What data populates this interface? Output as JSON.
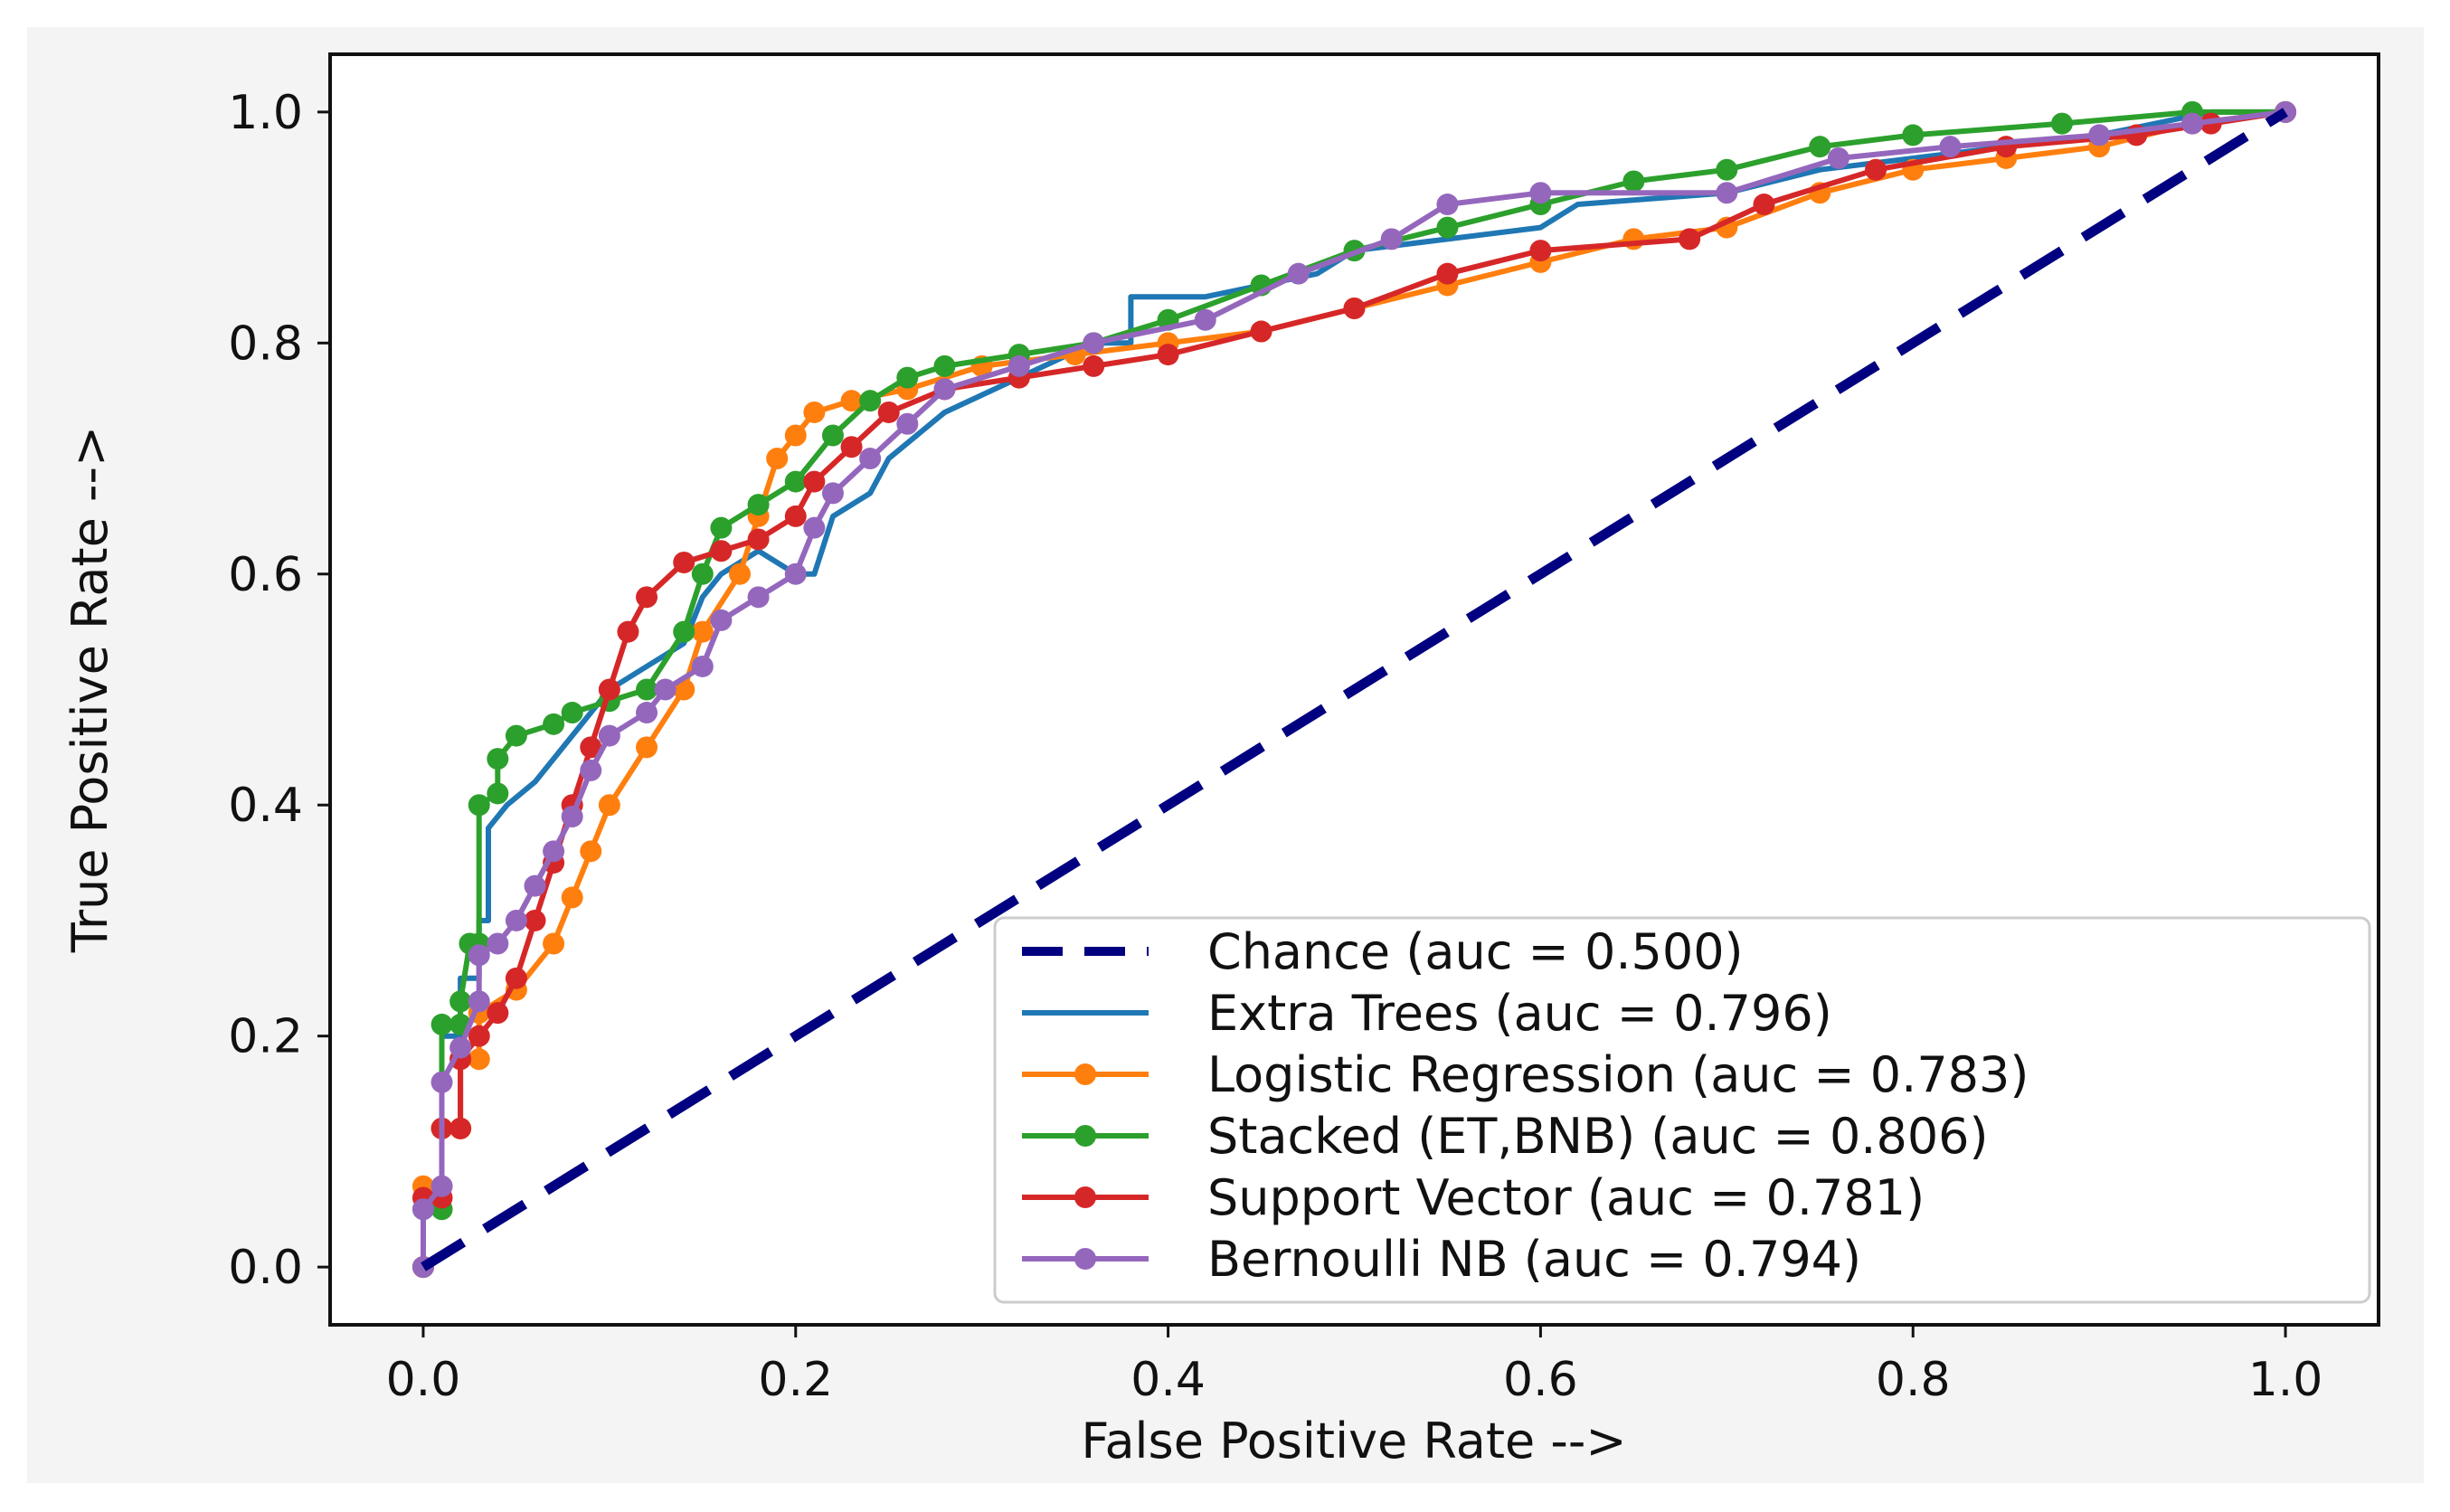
{
  "chart_data": {
    "type": "line",
    "title": "",
    "xlabel": "False Positive Rate -->",
    "ylabel": "True Positive Rate -->",
    "xlim": [
      -0.05,
      1.05
    ],
    "ylim": [
      -0.05,
      1.05
    ],
    "x_ticks": [
      "0.0",
      "0.2",
      "0.4",
      "0.6",
      "0.8",
      "1.0"
    ],
    "y_ticks": [
      "0.0",
      "0.2",
      "0.4",
      "0.6",
      "0.8",
      "1.0"
    ],
    "x_tick_values": [
      0,
      0.2,
      0.4,
      0.6,
      0.8,
      1.0
    ],
    "y_tick_values": [
      0,
      0.2,
      0.4,
      0.6,
      0.8,
      1.0
    ],
    "grid": false,
    "legend_position": "bottom-right",
    "series": [
      {
        "name": "Chance (auc = 0.500)",
        "color": "#000080",
        "style": "dashed",
        "markers": false,
        "points": [
          [
            0,
            0
          ],
          [
            1,
            1
          ]
        ]
      },
      {
        "name": "Extra Trees (auc = 0.796)",
        "color": "#1f77b4",
        "style": "solid",
        "markers": false,
        "points": [
          [
            0,
            0
          ],
          [
            0,
            0.05
          ],
          [
            0.01,
            0.05
          ],
          [
            0.01,
            0.2
          ],
          [
            0.02,
            0.2
          ],
          [
            0.02,
            0.25
          ],
          [
            0.03,
            0.25
          ],
          [
            0.03,
            0.3
          ],
          [
            0.035,
            0.3
          ],
          [
            0.035,
            0.38
          ],
          [
            0.045,
            0.4
          ],
          [
            0.06,
            0.42
          ],
          [
            0.08,
            0.46
          ],
          [
            0.1,
            0.5
          ],
          [
            0.12,
            0.52
          ],
          [
            0.14,
            0.54
          ],
          [
            0.15,
            0.58
          ],
          [
            0.16,
            0.6
          ],
          [
            0.18,
            0.62
          ],
          [
            0.2,
            0.6
          ],
          [
            0.21,
            0.6
          ],
          [
            0.22,
            0.65
          ],
          [
            0.24,
            0.67
          ],
          [
            0.25,
            0.7
          ],
          [
            0.28,
            0.74
          ],
          [
            0.32,
            0.77
          ],
          [
            0.36,
            0.8
          ],
          [
            0.38,
            0.8
          ],
          [
            0.38,
            0.84
          ],
          [
            0.42,
            0.84
          ],
          [
            0.48,
            0.86
          ],
          [
            0.5,
            0.88
          ],
          [
            0.55,
            0.89
          ],
          [
            0.6,
            0.9
          ],
          [
            0.62,
            0.92
          ],
          [
            0.7,
            0.93
          ],
          [
            0.75,
            0.95
          ],
          [
            0.8,
            0.96
          ],
          [
            0.9,
            0.98
          ],
          [
            0.96,
            1.0
          ],
          [
            1.0,
            1.0
          ]
        ]
      },
      {
        "name": "Logistic Regression (auc = 0.783)",
        "color": "#ff7f0e",
        "style": "solid",
        "markers": true,
        "points": [
          [
            0,
            0
          ],
          [
            0,
            0.07
          ],
          [
            0.01,
            0.07
          ],
          [
            0.01,
            0.12
          ],
          [
            0.02,
            0.12
          ],
          [
            0.02,
            0.18
          ],
          [
            0.03,
            0.18
          ],
          [
            0.03,
            0.22
          ],
          [
            0.05,
            0.24
          ],
          [
            0.07,
            0.28
          ],
          [
            0.08,
            0.32
          ],
          [
            0.09,
            0.36
          ],
          [
            0.1,
            0.4
          ],
          [
            0.12,
            0.45
          ],
          [
            0.14,
            0.5
          ],
          [
            0.15,
            0.55
          ],
          [
            0.17,
            0.6
          ],
          [
            0.18,
            0.65
          ],
          [
            0.19,
            0.7
          ],
          [
            0.2,
            0.72
          ],
          [
            0.21,
            0.74
          ],
          [
            0.23,
            0.75
          ],
          [
            0.26,
            0.76
          ],
          [
            0.3,
            0.78
          ],
          [
            0.35,
            0.79
          ],
          [
            0.4,
            0.8
          ],
          [
            0.45,
            0.81
          ],
          [
            0.5,
            0.83
          ],
          [
            0.55,
            0.85
          ],
          [
            0.6,
            0.87
          ],
          [
            0.65,
            0.89
          ],
          [
            0.7,
            0.9
          ],
          [
            0.75,
            0.93
          ],
          [
            0.8,
            0.95
          ],
          [
            0.85,
            0.96
          ],
          [
            0.9,
            0.97
          ],
          [
            0.95,
            0.99
          ],
          [
            1.0,
            1.0
          ]
        ]
      },
      {
        "name": "Stacked (ET,BNB) (auc = 0.806)",
        "color": "#2ca02c",
        "style": "solid",
        "markers": true,
        "points": [
          [
            0,
            0
          ],
          [
            0,
            0.05
          ],
          [
            0.01,
            0.05
          ],
          [
            0.01,
            0.21
          ],
          [
            0.02,
            0.21
          ],
          [
            0.02,
            0.23
          ],
          [
            0.025,
            0.28
          ],
          [
            0.03,
            0.28
          ],
          [
            0.03,
            0.4
          ],
          [
            0.04,
            0.41
          ],
          [
            0.04,
            0.44
          ],
          [
            0.05,
            0.46
          ],
          [
            0.07,
            0.47
          ],
          [
            0.08,
            0.48
          ],
          [
            0.1,
            0.49
          ],
          [
            0.12,
            0.5
          ],
          [
            0.14,
            0.55
          ],
          [
            0.15,
            0.6
          ],
          [
            0.16,
            0.64
          ],
          [
            0.18,
            0.66
          ],
          [
            0.2,
            0.68
          ],
          [
            0.22,
            0.72
          ],
          [
            0.24,
            0.75
          ],
          [
            0.26,
            0.77
          ],
          [
            0.28,
            0.78
          ],
          [
            0.32,
            0.79
          ],
          [
            0.36,
            0.8
          ],
          [
            0.4,
            0.82
          ],
          [
            0.45,
            0.85
          ],
          [
            0.5,
            0.88
          ],
          [
            0.55,
            0.9
          ],
          [
            0.6,
            0.92
          ],
          [
            0.65,
            0.94
          ],
          [
            0.7,
            0.95
          ],
          [
            0.75,
            0.97
          ],
          [
            0.8,
            0.98
          ],
          [
            0.88,
            0.99
          ],
          [
            0.95,
            1.0
          ],
          [
            1.0,
            1.0
          ]
        ]
      },
      {
        "name": "Support Vector (auc = 0.781)",
        "color": "#d62728",
        "style": "solid",
        "markers": true,
        "points": [
          [
            0,
            0
          ],
          [
            0,
            0.06
          ],
          [
            0.01,
            0.06
          ],
          [
            0.01,
            0.12
          ],
          [
            0.02,
            0.12
          ],
          [
            0.02,
            0.18
          ],
          [
            0.03,
            0.2
          ],
          [
            0.04,
            0.22
          ],
          [
            0.05,
            0.25
          ],
          [
            0.06,
            0.3
          ],
          [
            0.07,
            0.35
          ],
          [
            0.08,
            0.4
          ],
          [
            0.09,
            0.45
          ],
          [
            0.1,
            0.5
          ],
          [
            0.11,
            0.55
          ],
          [
            0.12,
            0.58
          ],
          [
            0.14,
            0.61
          ],
          [
            0.16,
            0.62
          ],
          [
            0.18,
            0.63
          ],
          [
            0.2,
            0.65
          ],
          [
            0.21,
            0.68
          ],
          [
            0.23,
            0.71
          ],
          [
            0.25,
            0.74
          ],
          [
            0.28,
            0.76
          ],
          [
            0.32,
            0.77
          ],
          [
            0.36,
            0.78
          ],
          [
            0.4,
            0.79
          ],
          [
            0.45,
            0.81
          ],
          [
            0.5,
            0.83
          ],
          [
            0.55,
            0.86
          ],
          [
            0.6,
            0.88
          ],
          [
            0.68,
            0.89
          ],
          [
            0.72,
            0.92
          ],
          [
            0.78,
            0.95
          ],
          [
            0.85,
            0.97
          ],
          [
            0.92,
            0.98
          ],
          [
            0.96,
            0.99
          ],
          [
            1.0,
            1.0
          ]
        ]
      },
      {
        "name": "Bernoulli NB (auc = 0.794)",
        "color": "#9467bd",
        "style": "solid",
        "markers": true,
        "points": [
          [
            0,
            0
          ],
          [
            0,
            0.05
          ],
          [
            0.01,
            0.07
          ],
          [
            0.01,
            0.16
          ],
          [
            0.02,
            0.19
          ],
          [
            0.03,
            0.23
          ],
          [
            0.03,
            0.27
          ],
          [
            0.04,
            0.28
          ],
          [
            0.05,
            0.3
          ],
          [
            0.06,
            0.33
          ],
          [
            0.07,
            0.36
          ],
          [
            0.08,
            0.39
          ],
          [
            0.09,
            0.43
          ],
          [
            0.1,
            0.46
          ],
          [
            0.12,
            0.48
          ],
          [
            0.13,
            0.5
          ],
          [
            0.15,
            0.52
          ],
          [
            0.16,
            0.56
          ],
          [
            0.18,
            0.58
          ],
          [
            0.2,
            0.6
          ],
          [
            0.21,
            0.64
          ],
          [
            0.22,
            0.67
          ],
          [
            0.24,
            0.7
          ],
          [
            0.26,
            0.73
          ],
          [
            0.28,
            0.76
          ],
          [
            0.32,
            0.78
          ],
          [
            0.36,
            0.8
          ],
          [
            0.42,
            0.82
          ],
          [
            0.47,
            0.86
          ],
          [
            0.52,
            0.89
          ],
          [
            0.55,
            0.92
          ],
          [
            0.6,
            0.93
          ],
          [
            0.7,
            0.93
          ],
          [
            0.76,
            0.96
          ],
          [
            0.82,
            0.97
          ],
          [
            0.9,
            0.98
          ],
          [
            0.95,
            0.99
          ],
          [
            1.0,
            1.0
          ]
        ]
      }
    ]
  }
}
